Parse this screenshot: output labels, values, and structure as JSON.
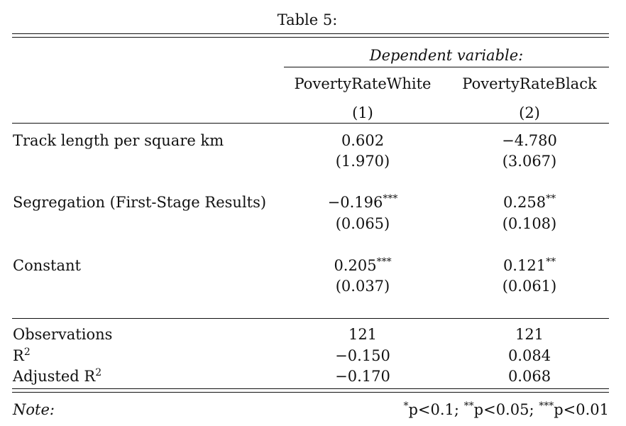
{
  "table": {
    "caption": "Table 5:",
    "dep_var_heading": "Dependent variable:",
    "columns": [
      {
        "name": "PovertyRateWhite",
        "number": "(1)"
      },
      {
        "name": "PovertyRateBlack",
        "number": "(2)"
      }
    ],
    "rows": [
      {
        "label": "Track length per square km",
        "c1": {
          "coef": "0.602",
          "stars": "",
          "se": "(1.970)"
        },
        "c2": {
          "coef": "−4.780",
          "stars": "",
          "se": "(3.067)"
        }
      },
      {
        "label": "Segregation (First-Stage Results)",
        "c1": {
          "coef": "−0.196",
          "stars": "***",
          "se": "(0.065)"
        },
        "c2": {
          "coef": "0.258",
          "stars": "**",
          "se": "(0.108)"
        }
      },
      {
        "label": "Constant",
        "c1": {
          "coef": "0.205",
          "stars": "***",
          "se": "(0.037)"
        },
        "c2": {
          "coef": "0.121",
          "stars": "**",
          "se": "(0.061)"
        }
      }
    ],
    "stats": [
      {
        "label": "Observations",
        "sup": "",
        "c1": "121",
        "c2": "121"
      },
      {
        "label": "R",
        "sup": "2",
        "c1": "−0.150",
        "c2": "0.084"
      },
      {
        "label": "Adjusted R",
        "sup": "2",
        "c1": "−0.170",
        "c2": "0.068"
      }
    ],
    "note": {
      "label": "Note:",
      "s1": "*",
      "t1": "p<0.1; ",
      "s2": "**",
      "t2": "p<0.05; ",
      "s3": "***",
      "t3": "p<0.01"
    }
  }
}
